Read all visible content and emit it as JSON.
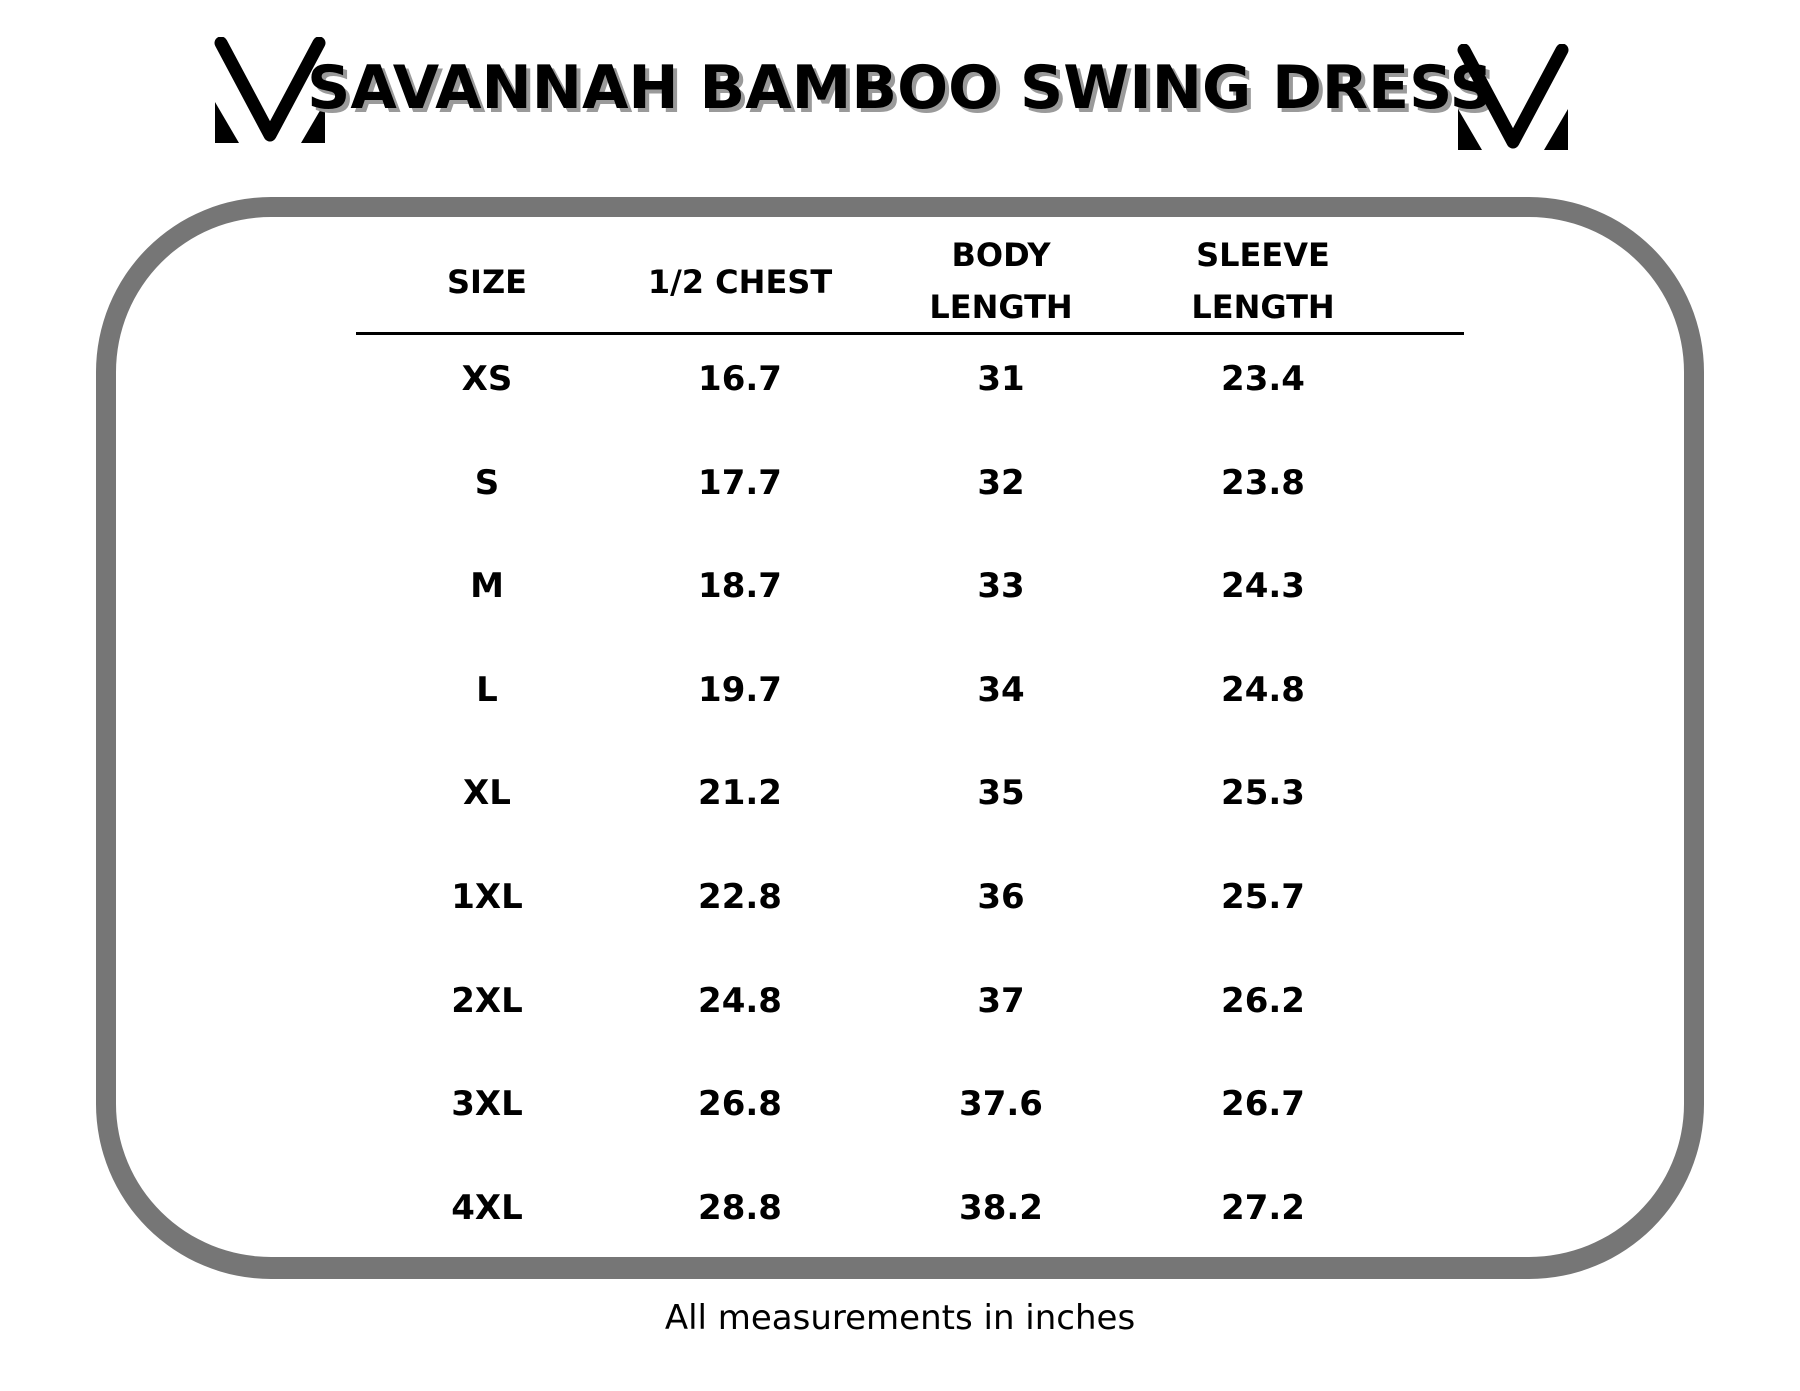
{
  "title": "SAVANNAH BAMBOO SWING DRESS",
  "logo_icon": "stylized-m-logo",
  "colors": {
    "border": "#767676",
    "text": "#000000",
    "title_shadow": "#9a9a9a"
  },
  "table": {
    "headers": [
      {
        "line1": "SIZE",
        "line2": ""
      },
      {
        "line1": "1/2 CHEST",
        "line2": ""
      },
      {
        "line1": "BODY",
        "line2": "LENGTH"
      },
      {
        "line1": "SLEEVE",
        "line2": "LENGTH"
      }
    ],
    "rows": [
      [
        "XS",
        "16.7",
        "31",
        "23.4"
      ],
      [
        "S",
        "17.7",
        "32",
        "23.8"
      ],
      [
        "M",
        "18.7",
        "33",
        "24.3"
      ],
      [
        "L",
        "19.7",
        "34",
        "24.8"
      ],
      [
        "XL",
        "21.2",
        "35",
        "25.3"
      ],
      [
        "1XL",
        "22.8",
        "36",
        "25.7"
      ],
      [
        "2XL",
        "24.8",
        "37",
        "26.2"
      ],
      [
        "3XL",
        "26.8",
        "37.6",
        "26.7"
      ],
      [
        "4XL",
        "28.8",
        "38.2",
        "27.2"
      ]
    ]
  },
  "footer": "All measurements in inches"
}
